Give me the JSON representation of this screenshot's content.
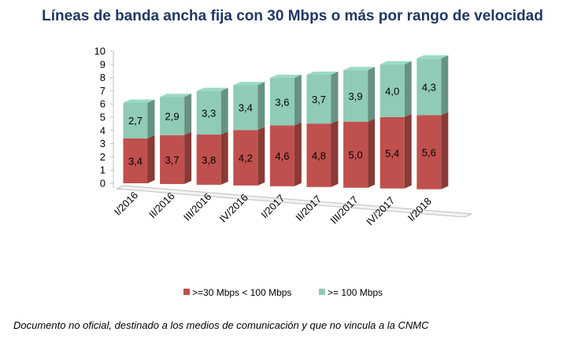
{
  "footer": {
    "note": "Documento no oficial, destinado a los medios de comunicación y que no vincula a la CNMC"
  },
  "chart_data": {
    "type": "bar",
    "stacked": true,
    "three_d": true,
    "title": "Líneas de banda ancha fija con 30 Mbps o más por rango de velocidad",
    "xlabel": "",
    "ylabel": "",
    "ylim": [
      0,
      10
    ],
    "y_ticks": [
      "0",
      "1",
      "2",
      "3",
      "4",
      "5",
      "6",
      "7",
      "8",
      "9",
      "10"
    ],
    "grid": false,
    "legend_position": "bottom",
    "categories": [
      "I/2016",
      "II/2016",
      "III/2016",
      "IV/2016",
      "I/2017",
      "II/2017",
      "III/2017",
      "IV/2017",
      "I/2018"
    ],
    "series": [
      {
        "name": ">=30 Mbps < 100 Mbps",
        "color": "#c0504d",
        "values": [
          3.4,
          3.7,
          3.8,
          4.2,
          4.6,
          4.8,
          5.0,
          5.4,
          5.6
        ],
        "labels": [
          "3,4",
          "3,7",
          "3,8",
          "4,2",
          "4,6",
          "4,8",
          "5,0",
          "5,4",
          "5,6"
        ]
      },
      {
        "name": ">= 100 Mbps",
        "color": "#8fcbb5",
        "values": [
          2.7,
          2.9,
          3.3,
          3.4,
          3.6,
          3.7,
          3.9,
          4.0,
          4.3
        ],
        "labels": [
          "2,7",
          "2,9",
          "3,3",
          "3,4",
          "3,6",
          "3,7",
          "3,9",
          "4,0",
          "4,3"
        ]
      }
    ]
  }
}
